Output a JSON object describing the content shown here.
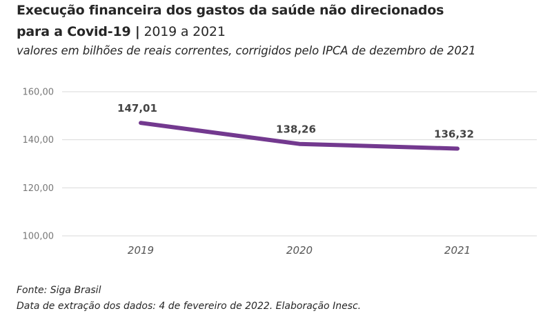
{
  "title": {
    "line1": "Execução financeira dos gastos da saúde não direcionados",
    "line2_bold": "para a Covid-19 |",
    "line2_light": " 2019 a 2021"
  },
  "subtitle": "valores em bilhões de reais correntes, corrigidos pelo IPCA de dezembro de 2021",
  "footer": {
    "source": "Fonte: Siga Brasil",
    "note": "Data de extração dos dados: 4 de fevereiro de 2022. Elaboração Inesc."
  },
  "colors": {
    "line": "#73398f",
    "grid": "#d9d9d9"
  },
  "chart_data": {
    "type": "line",
    "categories": [
      "2019",
      "2020",
      "2021"
    ],
    "series": [
      {
        "values": [
          147.01,
          138.26,
          136.32
        ],
        "data_labels": [
          "147,01",
          "138,26",
          "136,32"
        ]
      }
    ],
    "y_ticks": [
      100,
      120,
      140,
      160
    ],
    "y_tick_labels": [
      "100,00",
      "120,00",
      "140,00",
      "160,00"
    ],
    "ylim": [
      100,
      160
    ],
    "grid": true,
    "legend": "none",
    "xlabel": "",
    "ylabel": ""
  }
}
